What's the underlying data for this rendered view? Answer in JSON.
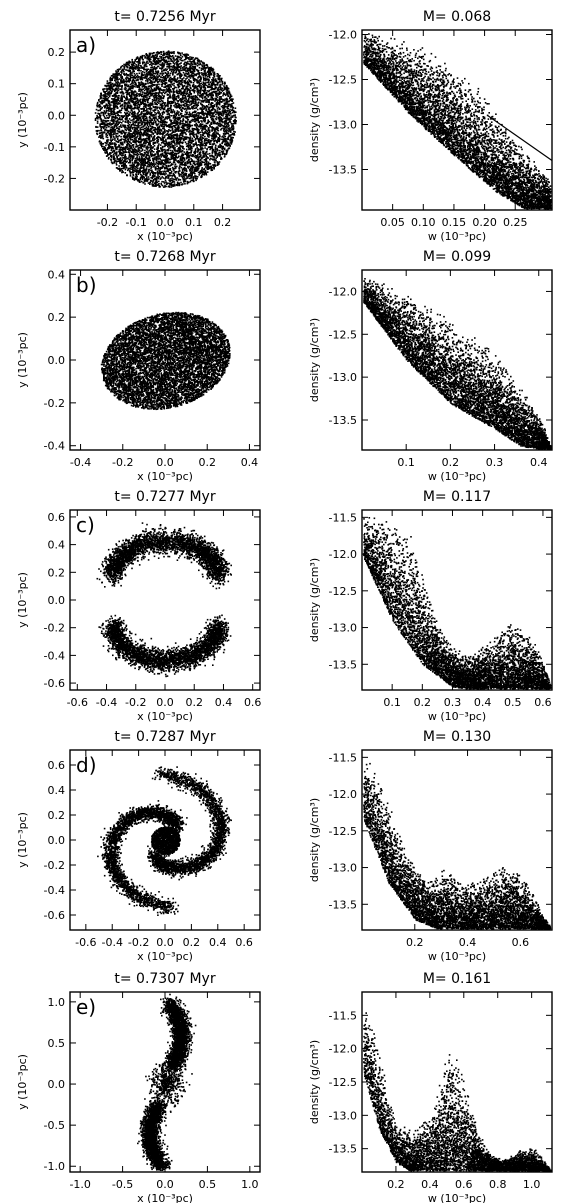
{
  "figure": {
    "style": "black-and-white particle scatter plots, 5 rows x 2 columns"
  },
  "chart_data": [
    {
      "type": "scatter",
      "panel": "a)",
      "title": "t= 0.7256 Myr",
      "xlabel": "x (10⁻³pc)",
      "ylabel": "y (10⁻³pc)",
      "xlim": [
        -0.33,
        0.33
      ],
      "ylim": [
        -0.3,
        0.27
      ],
      "xticks": [
        -0.2,
        -0.1,
        0.0,
        0.1,
        0.2
      ],
      "xticklabels": [
        "-0.2",
        "-0.1",
        "0.0",
        "0.1",
        "0.2"
      ],
      "yticks": [
        -0.2,
        -0.1,
        0.0,
        0.1,
        0.2
      ],
      "yticklabels": [
        "-0.2",
        "-0.1",
        "0.0",
        "0.1",
        "0.2"
      ],
      "morphology": "disk",
      "n_points": 7000,
      "grid": false,
      "legend": "none"
    },
    {
      "type": "scatter",
      "title": "M= 0.068",
      "xlabel": "w (10⁻³pc)",
      "ylabel": "density (g/cm³)",
      "xlim": [
        0.0,
        0.31
      ],
      "ylim": [
        -13.95,
        -11.95
      ],
      "xticks": [
        0.05,
        0.1,
        0.15,
        0.2,
        0.25
      ],
      "xticklabels": [
        "0.05",
        "0.10",
        "0.15",
        "0.20",
        "0.25"
      ],
      "yticks": [
        -13.5,
        -13.0,
        -12.5,
        -12.0
      ],
      "yticklabels": [
        "-13.5",
        "-13.0",
        "-12.5",
        "-12.0"
      ],
      "upper_envelope": [
        [
          0.0,
          -11.95
        ],
        [
          0.1,
          -12.1
        ],
        [
          0.18,
          -12.5
        ],
        [
          0.23,
          -12.9
        ],
        [
          0.27,
          -13.3
        ],
        [
          0.31,
          -13.65
        ]
      ],
      "lower_envelope": [
        [
          0.0,
          -12.3
        ],
        [
          0.08,
          -12.9
        ],
        [
          0.16,
          -13.4
        ],
        [
          0.22,
          -13.75
        ],
        [
          0.27,
          -13.95
        ],
        [
          0.31,
          -13.95
        ]
      ],
      "reference_line": [
        [
          0.205,
          -12.9
        ],
        [
          0.31,
          -13.4
        ]
      ],
      "n_points": 6000,
      "grid": false,
      "legend": "none"
    },
    {
      "type": "scatter",
      "panel": "b)",
      "title": "t= 0.7268 Myr",
      "xlabel": "x (10⁻³pc)",
      "ylabel": "y (10⁻³pc)",
      "xlim": [
        -0.45,
        0.45
      ],
      "ylim": [
        -0.42,
        0.42
      ],
      "xticks": [
        -0.4,
        -0.2,
        0.0,
        0.2,
        0.4
      ],
      "xticklabels": [
        "-0.4",
        "-0.2",
        "0.0",
        "0.2",
        "0.4"
      ],
      "yticks": [
        -0.4,
        -0.2,
        0.0,
        0.2,
        0.4
      ],
      "yticklabels": [
        "-0.4",
        "-0.2",
        "0.0",
        "0.2",
        "0.4"
      ],
      "morphology": "bar",
      "n_points": 7000,
      "grid": false,
      "legend": "none"
    },
    {
      "type": "scatter",
      "title": "M= 0.099",
      "xlabel": "w (10⁻³pc)",
      "ylabel": "density (g/cm³)",
      "xlim": [
        0.0,
        0.43
      ],
      "ylim": [
        -13.85,
        -11.75
      ],
      "xticks": [
        0.1,
        0.2,
        0.3,
        0.4
      ],
      "xticklabels": [
        "0.1",
        "0.2",
        "0.3",
        "0.4"
      ],
      "yticks": [
        -13.5,
        -13.0,
        -12.5,
        -12.0
      ],
      "yticklabels": [
        "-13.5",
        "-13.0",
        "-12.5",
        "-12.0"
      ],
      "upper_envelope": [
        [
          0.0,
          -11.8
        ],
        [
          0.1,
          -12.0
        ],
        [
          0.2,
          -12.3
        ],
        [
          0.3,
          -12.7
        ],
        [
          0.36,
          -13.1
        ],
        [
          0.41,
          -13.55
        ],
        [
          0.43,
          -13.85
        ]
      ],
      "lower_envelope": [
        [
          0.0,
          -12.1
        ],
        [
          0.1,
          -12.8
        ],
        [
          0.2,
          -13.3
        ],
        [
          0.3,
          -13.6
        ],
        [
          0.36,
          -13.8
        ],
        [
          0.43,
          -13.85
        ]
      ],
      "n_points": 6000,
      "grid": false,
      "legend": "none"
    },
    {
      "type": "scatter",
      "panel": "c)",
      "title": "t= 0.7277 Myr",
      "xlabel": "x (10⁻³pc)",
      "ylabel": "y (10⁻³pc)",
      "xlim": [
        -0.65,
        0.65
      ],
      "ylim": [
        -0.65,
        0.65
      ],
      "xticks": [
        -0.6,
        -0.4,
        -0.2,
        0.0,
        0.2,
        0.4,
        0.6
      ],
      "xticklabels": [
        "-0.6",
        "-0.4",
        "-0.2",
        "0.0",
        "0.2",
        "0.4",
        "0.6"
      ],
      "yticks": [
        -0.6,
        -0.4,
        -0.2,
        0.0,
        0.2,
        0.4,
        0.6
      ],
      "yticklabels": [
        "-0.6",
        "-0.4",
        "-0.2",
        "0.0",
        "0.2",
        "0.4",
        "0.6"
      ],
      "morphology": "two-arm",
      "n_points": 6000,
      "grid": false,
      "legend": "none"
    },
    {
      "type": "scatter",
      "title": "M= 0.117",
      "xlabel": "w (10⁻³pc)",
      "ylabel": "density (g/cm³)",
      "xlim": [
        0.0,
        0.63
      ],
      "ylim": [
        -13.85,
        -11.4
      ],
      "xticks": [
        0.1,
        0.2,
        0.3,
        0.4,
        0.5,
        0.6
      ],
      "xticklabels": [
        "0.1",
        "0.2",
        "0.3",
        "0.4",
        "0.5",
        "0.6"
      ],
      "yticks": [
        -13.5,
        -13.0,
        -12.5,
        -12.0,
        -11.5
      ],
      "yticklabels": [
        "-13.5",
        "-13.0",
        "-12.5",
        "-12.0",
        "-11.5"
      ],
      "upper_envelope": [
        [
          0.0,
          -11.45
        ],
        [
          0.1,
          -11.5
        ],
        [
          0.16,
          -11.7
        ],
        [
          0.2,
          -12.25
        ],
        [
          0.25,
          -12.9
        ],
        [
          0.3,
          -13.25
        ],
        [
          0.36,
          -13.35
        ],
        [
          0.42,
          -13.15
        ],
        [
          0.48,
          -12.9
        ],
        [
          0.53,
          -12.95
        ],
        [
          0.58,
          -13.25
        ],
        [
          0.61,
          -13.6
        ],
        [
          0.63,
          -13.85
        ]
      ],
      "lower_envelope": [
        [
          0.0,
          -12.0
        ],
        [
          0.1,
          -12.9
        ],
        [
          0.2,
          -13.5
        ],
        [
          0.3,
          -13.8
        ],
        [
          0.4,
          -13.85
        ],
        [
          0.63,
          -13.85
        ]
      ],
      "n_points": 6000,
      "grid": false,
      "legend": "none"
    },
    {
      "type": "scatter",
      "panel": "d)",
      "title": "t= 0.7287 Myr",
      "xlabel": "x (10⁻³pc)",
      "ylabel": "y (10⁻³pc)",
      "xlim": [
        -0.72,
        0.72
      ],
      "ylim": [
        -0.72,
        0.72
      ],
      "xticks": [
        -0.6,
        -0.4,
        -0.2,
        0.0,
        0.2,
        0.4,
        0.6
      ],
      "xticklabels": [
        "-0.6",
        "-0.4",
        "-0.2",
        "0.0",
        "0.2",
        "0.4",
        "0.6"
      ],
      "yticks": [
        -0.6,
        -0.4,
        -0.2,
        0.0,
        0.2,
        0.4,
        0.6
      ],
      "yticklabels": [
        "-0.6",
        "-0.4",
        "-0.2",
        "0.0",
        "0.2",
        "0.4",
        "0.6"
      ],
      "morphology": "spiral",
      "n_points": 6000,
      "grid": false,
      "legend": "none"
    },
    {
      "type": "scatter",
      "title": "M= 0.130",
      "xlabel": "w (10⁻³pc)",
      "ylabel": "density (g/cm³)",
      "xlim": [
        0.0,
        0.72
      ],
      "ylim": [
        -13.85,
        -11.4
      ],
      "xticks": [
        0.2,
        0.4,
        0.6
      ],
      "xticklabels": [
        "0.2",
        "0.4",
        "0.6"
      ],
      "yticks": [
        -13.5,
        -13.0,
        -12.5,
        -12.0,
        -11.5
      ],
      "yticklabels": [
        "-13.5",
        "-13.0",
        "-12.5",
        "-12.0",
        "-11.5"
      ],
      "upper_envelope": [
        [
          0.0,
          -11.45
        ],
        [
          0.05,
          -11.6
        ],
        [
          0.1,
          -12.1
        ],
        [
          0.15,
          -12.6
        ],
        [
          0.2,
          -12.95
        ],
        [
          0.26,
          -13.15
        ],
        [
          0.32,
          -12.95
        ],
        [
          0.38,
          -13.2
        ],
        [
          0.45,
          -13.1
        ],
        [
          0.52,
          -12.95
        ],
        [
          0.58,
          -12.95
        ],
        [
          0.64,
          -13.25
        ],
        [
          0.68,
          -13.6
        ],
        [
          0.72,
          -13.85
        ]
      ],
      "lower_envelope": [
        [
          0.0,
          -12.3
        ],
        [
          0.1,
          -13.2
        ],
        [
          0.2,
          -13.7
        ],
        [
          0.3,
          -13.85
        ],
        [
          0.72,
          -13.85
        ]
      ],
      "n_points": 6000,
      "grid": false,
      "legend": "none"
    },
    {
      "type": "scatter",
      "panel": "e)",
      "title": "t= 0.7307 Myr",
      "xlabel": "x (10⁻³pc)",
      "ylabel": "y (10⁻³pc)",
      "xlim": [
        -1.12,
        1.12
      ],
      "ylim": [
        -1.07,
        1.12
      ],
      "xticks": [
        -1.0,
        -0.5,
        0.0,
        0.5,
        1.0
      ],
      "xticklabels": [
        "-1.0",
        "-0.5",
        "0.0",
        "0.5",
        "1.0"
      ],
      "yticks": [
        -1.0,
        -0.5,
        0.0,
        0.5,
        1.0
      ],
      "yticklabels": [
        "-1.0",
        "-0.5",
        "0.0",
        "0.5",
        "1.0"
      ],
      "morphology": "s-shape",
      "n_points": 5000,
      "grid": false,
      "legend": "none"
    },
    {
      "type": "scatter",
      "title": "M= 0.161",
      "xlabel": "w (10⁻³pc)",
      "ylabel": "density (g/cm³)",
      "xlim": [
        0.0,
        1.12
      ],
      "ylim": [
        -13.85,
        -11.15
      ],
      "xticks": [
        0.2,
        0.4,
        0.6,
        0.8,
        1.0
      ],
      "xticklabels": [
        "0.2",
        "0.4",
        "0.6",
        "0.8",
        "1.0"
      ],
      "yticks": [
        -13.5,
        -13.0,
        -12.5,
        -12.0,
        -11.5
      ],
      "yticklabels": [
        "-13.5",
        "-13.0",
        "-12.5",
        "-12.0",
        "-11.5"
      ],
      "upper_envelope": [
        [
          0.0,
          -11.2
        ],
        [
          0.05,
          -11.5
        ],
        [
          0.1,
          -12.0
        ],
        [
          0.15,
          -12.6
        ],
        [
          0.2,
          -13.05
        ],
        [
          0.3,
          -13.2
        ],
        [
          0.4,
          -12.9
        ],
        [
          0.46,
          -12.4
        ],
        [
          0.51,
          -11.85
        ],
        [
          0.56,
          -12.0
        ],
        [
          0.62,
          -12.6
        ],
        [
          0.68,
          -13.2
        ],
        [
          0.75,
          -13.55
        ],
        [
          0.85,
          -13.65
        ],
        [
          0.95,
          -13.45
        ],
        [
          1.02,
          -13.5
        ],
        [
          1.08,
          -13.7
        ],
        [
          1.12,
          -13.85
        ]
      ],
      "lower_envelope": [
        [
          0.0,
          -12.3
        ],
        [
          0.1,
          -13.2
        ],
        [
          0.2,
          -13.7
        ],
        [
          0.3,
          -13.85
        ],
        [
          1.12,
          -13.85
        ]
      ],
      "n_points": 6000,
      "grid": false,
      "legend": "none"
    }
  ]
}
